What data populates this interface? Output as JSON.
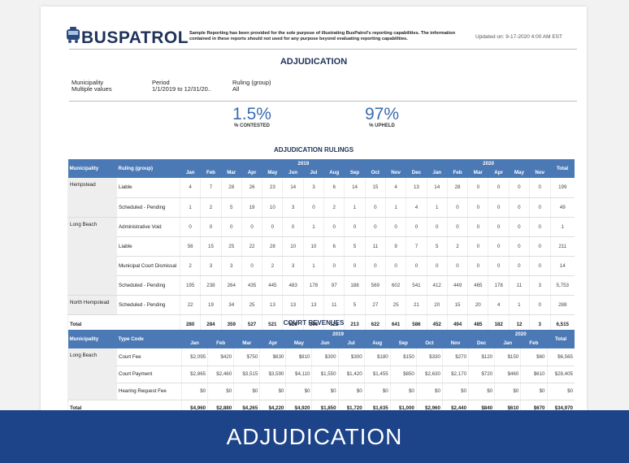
{
  "header": {
    "logo": "BUSPATROL",
    "disclaimer": "Sample Reporting has been provided for the sole purpose of illustrating BusPatrol's reporting capabilities. The information contained in these reports should not used for any purpose beyond evaluating reporting capabilities.",
    "updated": "Updated on: 9-17-2020 4:00 AM EST"
  },
  "title": "ADJUDICATION",
  "filters": [
    {
      "label": "Municipality",
      "value": "Multiple values"
    },
    {
      "label": "Period",
      "value": "1/1/2019 to 12/31/20.."
    },
    {
      "label": "Ruling (group)",
      "value": "All"
    }
  ],
  "kpis": [
    {
      "value": "1.5%",
      "label": "% CONTESTED"
    },
    {
      "value": "97%",
      "label": "% UPHELD"
    }
  ],
  "rulings": {
    "title": "ADJUDICATION RULINGS",
    "columns": {
      "group": "Municipality",
      "item": "Ruling (group)",
      "total": "Total"
    },
    "years": [
      {
        "label": "2019",
        "months": [
          "Jan",
          "Feb",
          "Mar",
          "Apr",
          "May",
          "Jun",
          "Jul",
          "Aug",
          "Sep",
          "Oct",
          "Nov",
          "Dec"
        ]
      },
      {
        "label": "2020",
        "months": [
          "Jan",
          "Feb",
          "Mar",
          "Apr",
          "May",
          "Nov"
        ]
      }
    ],
    "groups": [
      {
        "name": "Hempstead",
        "rows": [
          {
            "label": "Liable",
            "values": [
              4,
              7,
              28,
              26,
              23,
              14,
              3,
              6,
              14,
              15,
              4,
              13,
              14,
              28,
              0,
              0,
              0,
              0
            ],
            "total": 199
          },
          {
            "label": "Scheduled - Pending",
            "values": [
              1,
              2,
              5,
              19,
              10,
              3,
              0,
              2,
              1,
              0,
              1,
              4,
              1,
              0,
              0,
              0,
              0,
              0
            ],
            "total": 49
          }
        ]
      },
      {
        "name": "Long Beach",
        "rows": [
          {
            "label": "Administrative Void",
            "values": [
              0,
              0,
              0,
              0,
              0,
              0,
              1,
              0,
              0,
              0,
              0,
              0,
              0,
              0,
              0,
              0,
              0,
              0
            ],
            "total": 1
          },
          {
            "label": "Liable",
            "values": [
              56,
              15,
              25,
              22,
              28,
              10,
              10,
              6,
              5,
              11,
              9,
              7,
              5,
              2,
              0,
              0,
              0,
              0
            ],
            "total": 211
          },
          {
            "label": "Municipal Court Dismissal",
            "values": [
              2,
              3,
              3,
              0,
              2,
              3,
              1,
              0,
              0,
              0,
              0,
              0,
              0,
              0,
              0,
              0,
              0,
              0
            ],
            "total": 14
          },
          {
            "label": "Scheduled - Pending",
            "values": [
              195,
              238,
              264,
              435,
              445,
              483,
              178,
              97,
              188,
              569,
              602,
              541,
              412,
              449,
              465,
              178,
              11,
              3
            ],
            "total": "5,753"
          }
        ]
      },
      {
        "name": "North Hempstead",
        "rows": [
          {
            "label": "Scheduled - Pending",
            "values": [
              22,
              19,
              34,
              25,
              13,
              13,
              13,
              11,
              5,
              27,
              25,
              21,
              20,
              15,
              20,
              4,
              1,
              0
            ],
            "total": 288
          }
        ]
      }
    ],
    "total_row": {
      "label": "Total",
      "values": [
        280,
        284,
        359,
        527,
        521,
        526,
        206,
        122,
        213,
        622,
        641,
        586,
        452,
        494,
        485,
        182,
        12,
        3
      ],
      "total": "6,515"
    }
  },
  "revenues": {
    "title": "COURT REVENUES",
    "columns": {
      "group": "Municipality",
      "item": "Type Code",
      "total": "Total"
    },
    "years": [
      {
        "label": "2019",
        "months": [
          "Jan",
          "Feb",
          "Mar",
          "Apr",
          "May",
          "Jun",
          "Jul",
          "Aug",
          "Sep",
          "Oct",
          "Nov",
          "Dec"
        ]
      },
      {
        "label": "2020",
        "months": [
          "Jan",
          "Feb"
        ]
      }
    ],
    "groups": [
      {
        "name": "Long Beach",
        "rows": [
          {
            "label": "Court Fee",
            "values": [
              "$2,095",
              "$420",
              "$750",
              "$630",
              "$810",
              "$300",
              "$300",
              "$180",
              "$150",
              "$330",
              "$270",
              "$120",
              "$150",
              "$60"
            ],
            "total": "$6,565"
          },
          {
            "label": "Court Payment",
            "values": [
              "$2,865",
              "$2,460",
              "$3,515",
              "$3,590",
              "$4,110",
              "$1,550",
              "$1,420",
              "$1,455",
              "$850",
              "$2,630",
              "$2,170",
              "$720",
              "$460",
              "$610"
            ],
            "total": "$28,405"
          },
          {
            "label": "Hearing Request Fee",
            "values": [
              "$0",
              "$0",
              "$0",
              "$0",
              "$0",
              "$0",
              "$0",
              "$0",
              "$0",
              "$0",
              "$0",
              "$0",
              "$0",
              "$0"
            ],
            "total": "$0"
          }
        ]
      }
    ],
    "total_row": {
      "label": "Total",
      "values": [
        "$4,960",
        "$2,880",
        "$4,265",
        "$4,220",
        "$4,920",
        "$1,850",
        "$1,720",
        "$1,635",
        "$1,000",
        "$2,960",
        "$2,440",
        "$840",
        "$610",
        "$670"
      ],
      "total": "$34,970"
    }
  },
  "banner": "ADJUDICATION"
}
